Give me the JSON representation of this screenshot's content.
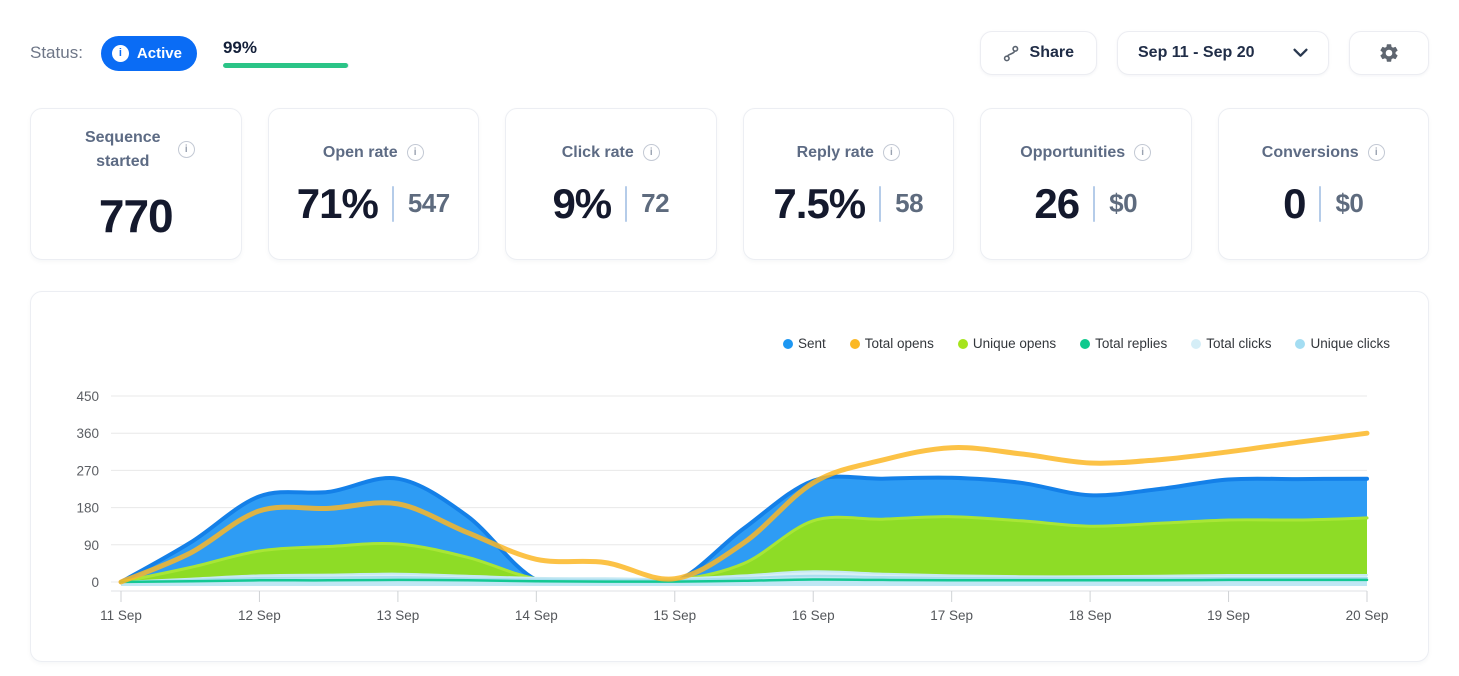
{
  "status_bar": {
    "label": "Status:",
    "badge": {
      "text": "Active",
      "color": "#0a6cf5"
    },
    "progress": {
      "percent_label": "99%",
      "percent": 99,
      "bar_color": "#2bc487"
    }
  },
  "toolbar": {
    "share_label": "Share",
    "date_range_label": "Sep 11 - Sep 20"
  },
  "icons": {
    "info_glyph": "i"
  },
  "cards": [
    {
      "id": "sequence-started",
      "label": "Sequence started",
      "value": "770"
    },
    {
      "id": "open-rate",
      "label": "Open rate",
      "value": "71%",
      "secondary": "547"
    },
    {
      "id": "click-rate",
      "label": "Click rate",
      "value": "9%",
      "secondary": "72"
    },
    {
      "id": "reply-rate",
      "label": "Reply rate",
      "value": "7.5%",
      "secondary": "58"
    },
    {
      "id": "opportunities",
      "label": "Opportunities",
      "value": "26",
      "secondary": "$0"
    },
    {
      "id": "conversions",
      "label": "Conversions",
      "value": "0",
      "secondary": "$0"
    }
  ],
  "chart_data": {
    "type": "area",
    "title": "",
    "xlabel": "",
    "ylabel": "",
    "x_unit": "date",
    "x": [
      11,
      11.5,
      12,
      12.5,
      13,
      13.5,
      14,
      14.5,
      15,
      15.5,
      16,
      16.5,
      17,
      17.5,
      18,
      18.5,
      19,
      19.5,
      20
    ],
    "x_tick_days": [
      11,
      12,
      13,
      14,
      15,
      16,
      17,
      18,
      19,
      20
    ],
    "x_tick_labels": [
      "11 Sep",
      "12 Sep",
      "13 Sep",
      "14 Sep",
      "15 Sep",
      "16 Sep",
      "17 Sep",
      "18 Sep",
      "19 Sep",
      "20 Sep"
    ],
    "y_ticks": [
      0,
      90,
      180,
      270,
      360,
      450
    ],
    "ylim": [
      0,
      450
    ],
    "grid": "horizontal",
    "legend_position": "top-right",
    "series": [
      {
        "name": "Sent",
        "type": "area",
        "color": "#1d97f2",
        "fill": "#2e9cf4",
        "stroke": "#1480e8",
        "stroke_width": 4,
        "values": [
          0,
          95,
          207,
          218,
          250,
          160,
          5,
          0,
          0,
          130,
          245,
          250,
          252,
          240,
          210,
          225,
          248,
          249,
          250
        ]
      },
      {
        "name": "Total opens",
        "type": "line",
        "color": "#fbb824",
        "fill": "none",
        "stroke": "#fbb726",
        "stroke_width": 5,
        "opacity": 0.85,
        "values": [
          0,
          70,
          172,
          178,
          189,
          120,
          55,
          47,
          8,
          95,
          240,
          295,
          325,
          310,
          288,
          296,
          315,
          338,
          360
        ]
      },
      {
        "name": "Unique opens",
        "type": "area",
        "color": "#a6e41c",
        "fill": "#8edc26",
        "stroke": "#a8e636",
        "stroke_width": 3,
        "values": [
          0,
          35,
          75,
          86,
          92,
          60,
          8,
          5,
          4,
          45,
          148,
          152,
          158,
          148,
          135,
          142,
          150,
          150,
          155
        ]
      },
      {
        "name": "Total replies",
        "type": "line",
        "color": "#0fc98e",
        "fill": "none",
        "stroke": "#13c893",
        "stroke_width": 2.5,
        "values": [
          0,
          2,
          4,
          4,
          5,
          4,
          2,
          1,
          1,
          3,
          6,
          5,
          4,
          4,
          4,
          4,
          5,
          5,
          5
        ]
      },
      {
        "name": "Total clicks",
        "type": "area",
        "color": "#d5eef7",
        "fill": "#d9f0f8",
        "stroke": "#c6e9f3",
        "stroke_width": 2,
        "values": [
          0,
          8,
          16,
          18,
          20,
          15,
          10,
          9,
          8,
          16,
          26,
          20,
          16,
          14,
          14,
          15,
          17,
          17,
          17
        ]
      },
      {
        "name": "Unique clicks",
        "type": "area",
        "color": "#a4ddf2",
        "fill": "#bfe7f4",
        "stroke": "#a9def0",
        "stroke_width": 2,
        "values": [
          0,
          5,
          10,
          11,
          12,
          9,
          6,
          5,
          5,
          10,
          15,
          12,
          10,
          9,
          9,
          9,
          10,
          10,
          10
        ]
      }
    ],
    "draw_order": [
      "Sent",
      "Unique opens",
      "Total clicks",
      "Unique clicks",
      "Total replies",
      "Total opens"
    ]
  }
}
